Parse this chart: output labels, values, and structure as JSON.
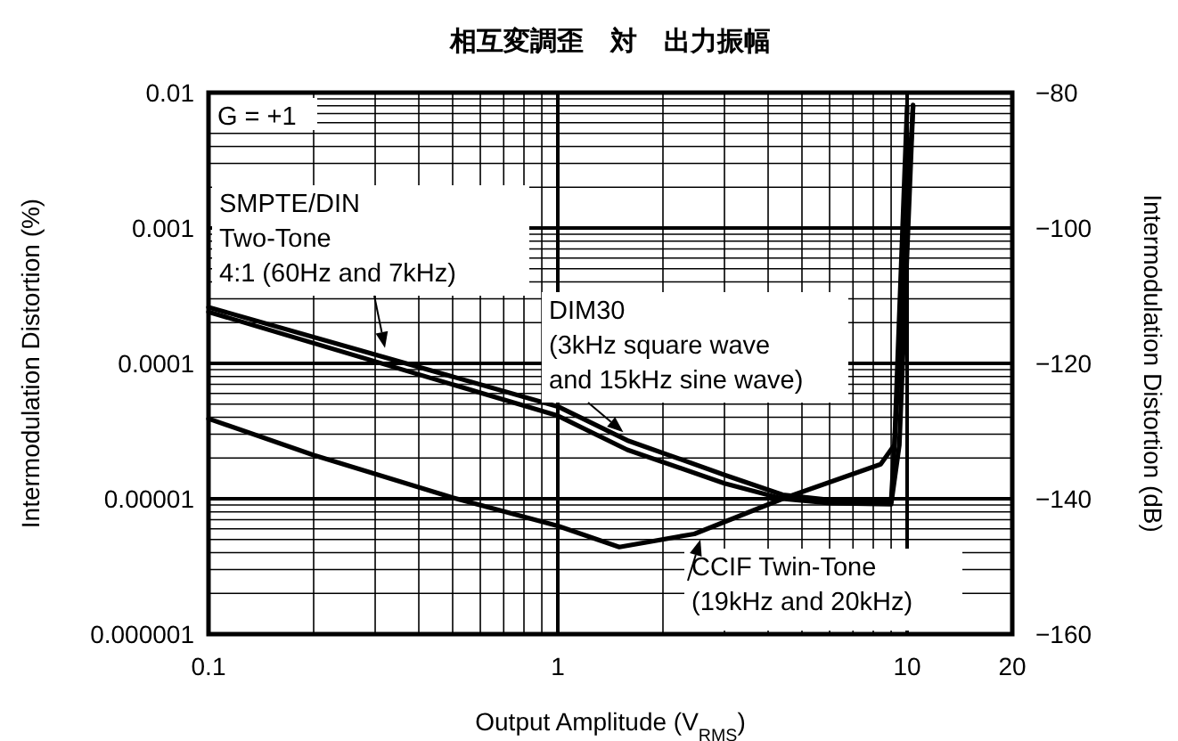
{
  "chart_data": {
    "type": "line",
    "title": "相互変調歪　対　出力振幅",
    "xlabel": "Output Amplitude (V$_{RMS}$)",
    "ylabel": "Intermodulation Distortion (%)",
    "y2label": "Intermodulation Distortion (dB)",
    "log": "xy",
    "grid": true,
    "marker": "none",
    "line_style": "solid",
    "xlim": [
      0.1,
      20
    ],
    "xticks": [
      0.1,
      1,
      10,
      20
    ],
    "ylim": [
      1e-06,
      0.01
    ],
    "yticks": [
      {
        "value": 1e-06,
        "label": "0.000001"
      },
      {
        "value": 1e-05,
        "label": "0.00001"
      },
      {
        "value": 0.0001,
        "label": "0.0001"
      },
      {
        "value": 0.001,
        "label": "0.001"
      },
      {
        "value": 0.01,
        "label": "0.01"
      }
    ],
    "y2lim": [
      -160,
      -80
    ],
    "y2ticks": [
      {
        "value": -160,
        "label": "−160"
      },
      {
        "value": -140,
        "label": "−140"
      },
      {
        "value": -120,
        "label": "−120"
      },
      {
        "value": -100,
        "label": "−100"
      },
      {
        "value": -80,
        "label": "−80"
      }
    ],
    "series": [
      {
        "color": "#000000",
        "x": [
          0.1,
          1,
          1.58,
          3.0,
          4.4,
          6.0,
          9.0,
          9.2,
          10
        ],
        "values": [
          0.00026,
          4.8e-05,
          2.7e-05,
          1.5e-05,
          1.07e-05,
          9.8e-06,
          9.5e-06,
          2.5e-05,
          0.0079
        ]
      },
      {
        "color": "#000000",
        "x": [
          0.1,
          1,
          1.58,
          3.0,
          4.4,
          6.0,
          9.0,
          9.5,
          10.4
        ],
        "values": [
          0.00024,
          4.1e-05,
          2.3e-05,
          1.3e-05,
          1e-05,
          9.3e-06,
          9.1e-06,
          2.5e-05,
          0.008
        ]
      },
      {
        "color": "#000000",
        "x": [
          0.1,
          0.2,
          0.5,
          1,
          1.5,
          2.46,
          4.4,
          8.4,
          9.2,
          10.4
        ],
        "values": [
          3.9e-05,
          2.1e-05,
          1.02e-05,
          6.3e-06,
          4.4e-06,
          5.5e-06,
          1e-05,
          1.8e-05,
          2.5e-05,
          0.0081
        ]
      }
    ],
    "annotations": [
      "G = +1",
      {
        "text": "SMPTE/DIN\nTwo-Tone\n4:1 (60Hz and 7kHz)",
        "x": 0.32,
        "y": 0.00013
      },
      {
        "text": "DIM30\n(3kHz square wave\nand 15kHz sine wave)",
        "x": 1.54,
        "y": 3.1e-05
      },
      {
        "text": "CCIF Twin-Tone\n(19kHz and 20kHz)",
        "x": 2.56,
        "y": 5e-06
      }
    ]
  }
}
